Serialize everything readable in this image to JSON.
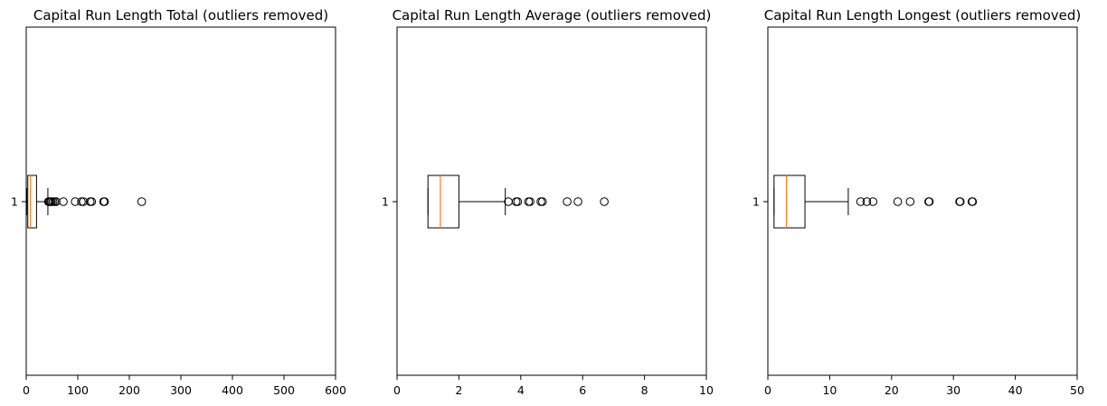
{
  "chart_data": [
    {
      "type": "boxplot",
      "orientation": "horizontal",
      "title": "Capital Run Length Total (outliers removed)",
      "xlim": [
        0,
        600
      ],
      "xticks": [
        0,
        100,
        200,
        300,
        400,
        500,
        600
      ],
      "ytick_label": "1",
      "box": {
        "whisker_low": 1,
        "q1": 3,
        "median": 8,
        "q3": 20,
        "whisker_high": 42
      },
      "outliers": [
        43,
        45,
        47,
        49,
        52,
        55,
        58,
        72,
        95,
        107,
        111,
        124,
        127,
        150,
        152,
        224
      ]
    },
    {
      "type": "boxplot",
      "orientation": "horizontal",
      "title": "Capital Run Length Average (outliers removed)",
      "xlim": [
        0,
        10
      ],
      "xticks": [
        0,
        2,
        4,
        6,
        8,
        10
      ],
      "ytick_label": "1",
      "box": {
        "whisker_low": 1.0,
        "q1": 1.0,
        "median": 1.4,
        "q3": 2.0,
        "whisker_high": 3.5
      },
      "outliers": [
        3.6,
        3.85,
        3.9,
        4.25,
        4.3,
        4.65,
        4.7,
        5.5,
        5.85,
        6.7
      ]
    },
    {
      "type": "boxplot",
      "orientation": "horizontal",
      "title": "Capital Run Length Longest (outliers removed)",
      "xlim": [
        0,
        50
      ],
      "xticks": [
        0,
        10,
        20,
        30,
        40,
        50
      ],
      "ytick_label": "1",
      "box": {
        "whisker_low": 1,
        "q1": 1,
        "median": 3,
        "q3": 6,
        "whisker_high": 13
      },
      "outliers": [
        15,
        16,
        17,
        21,
        23,
        26,
        26.1,
        31,
        31.1,
        33,
        33.1
      ]
    }
  ]
}
